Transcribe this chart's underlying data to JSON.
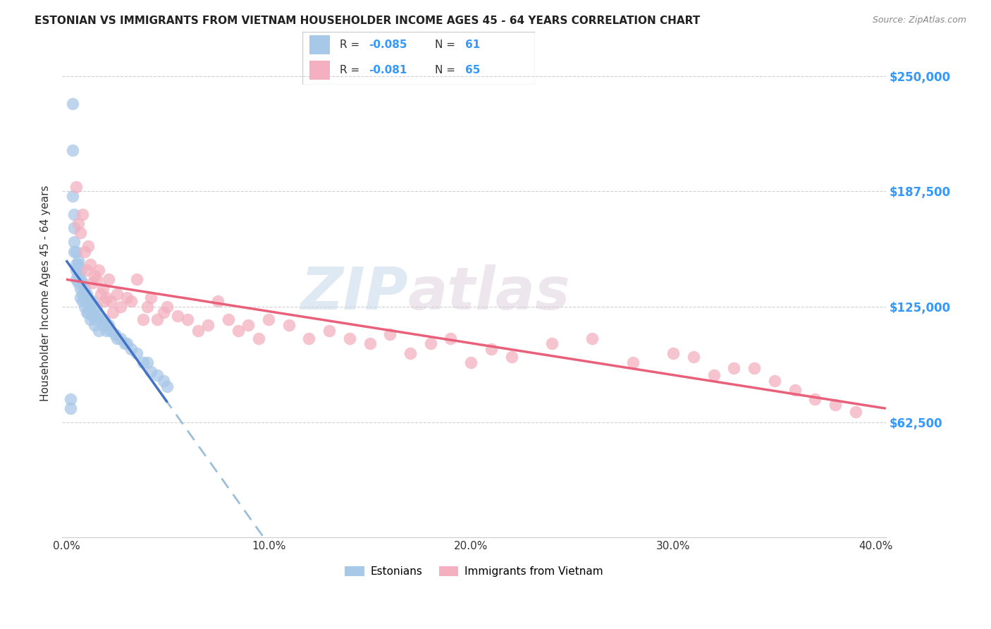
{
  "title": "ESTONIAN VS IMMIGRANTS FROM VIETNAM HOUSEHOLDER INCOME AGES 45 - 64 YEARS CORRELATION CHART",
  "source": "Source: ZipAtlas.com",
  "ylabel": "Householder Income Ages 45 - 64 years",
  "xlabel_ticks": [
    "0.0%",
    "10.0%",
    "20.0%",
    "30.0%",
    "40.0%"
  ],
  "xlabel_vals": [
    0.0,
    0.1,
    0.2,
    0.3,
    0.4
  ],
  "ylabel_ticks": [
    "$62,500",
    "$125,000",
    "$187,500",
    "$250,000"
  ],
  "ylabel_vals": [
    62500,
    125000,
    187500,
    250000
  ],
  "xmin": -0.002,
  "xmax": 0.405,
  "ymin": 0,
  "ymax": 265000,
  "color_estonian": "#a8c8e8",
  "color_vietnam": "#f4b0c0",
  "color_estonian_line": "#4472c4",
  "color_vietnam_line": "#e8607a",
  "color_estonian_dashed": "#90b8d8",
  "watermark_zip": "ZIP",
  "watermark_atlas": "atlas",
  "estonian_x": [
    0.002,
    0.002,
    0.003,
    0.003,
    0.003,
    0.004,
    0.004,
    0.004,
    0.004,
    0.005,
    0.005,
    0.005,
    0.005,
    0.006,
    0.006,
    0.006,
    0.006,
    0.007,
    0.007,
    0.007,
    0.007,
    0.008,
    0.008,
    0.008,
    0.009,
    0.009,
    0.009,
    0.01,
    0.01,
    0.01,
    0.011,
    0.011,
    0.012,
    0.012,
    0.013,
    0.013,
    0.014,
    0.014,
    0.015,
    0.015,
    0.016,
    0.016,
    0.017,
    0.018,
    0.019,
    0.02,
    0.021,
    0.022,
    0.024,
    0.025,
    0.027,
    0.029,
    0.03,
    0.032,
    0.035,
    0.038,
    0.04,
    0.042,
    0.045,
    0.048,
    0.05
  ],
  "estonian_y": [
    75000,
    70000,
    235000,
    210000,
    185000,
    175000,
    168000,
    160000,
    155000,
    155000,
    148000,
    145000,
    140000,
    150000,
    148000,
    142000,
    138000,
    145000,
    140000,
    135000,
    130000,
    138000,
    132000,
    128000,
    135000,
    130000,
    125000,
    132000,
    128000,
    122000,
    128000,
    122000,
    125000,
    118000,
    128000,
    120000,
    122000,
    115000,
    125000,
    118000,
    120000,
    112000,
    118000,
    115000,
    118000,
    112000,
    115000,
    112000,
    110000,
    108000,
    108000,
    105000,
    105000,
    102000,
    100000,
    95000,
    95000,
    90000,
    88000,
    85000,
    82000
  ],
  "vietnam_x": [
    0.005,
    0.006,
    0.007,
    0.008,
    0.009,
    0.01,
    0.011,
    0.012,
    0.013,
    0.014,
    0.015,
    0.016,
    0.017,
    0.018,
    0.019,
    0.02,
    0.021,
    0.022,
    0.023,
    0.025,
    0.027,
    0.03,
    0.032,
    0.035,
    0.038,
    0.04,
    0.042,
    0.045,
    0.048,
    0.05,
    0.055,
    0.06,
    0.065,
    0.07,
    0.075,
    0.08,
    0.085,
    0.09,
    0.095,
    0.1,
    0.11,
    0.12,
    0.13,
    0.14,
    0.15,
    0.16,
    0.17,
    0.18,
    0.19,
    0.2,
    0.21,
    0.22,
    0.24,
    0.26,
    0.28,
    0.3,
    0.31,
    0.32,
    0.33,
    0.34,
    0.35,
    0.36,
    0.37,
    0.38,
    0.39
  ],
  "vietnam_y": [
    190000,
    170000,
    165000,
    175000,
    155000,
    145000,
    158000,
    148000,
    138000,
    142000,
    140000,
    145000,
    132000,
    135000,
    128000,
    130000,
    140000,
    128000,
    122000,
    132000,
    125000,
    130000,
    128000,
    140000,
    118000,
    125000,
    130000,
    118000,
    122000,
    125000,
    120000,
    118000,
    112000,
    115000,
    128000,
    118000,
    112000,
    115000,
    108000,
    118000,
    115000,
    108000,
    112000,
    108000,
    105000,
    110000,
    100000,
    105000,
    108000,
    95000,
    102000,
    98000,
    105000,
    108000,
    95000,
    100000,
    98000,
    88000,
    92000,
    92000,
    85000,
    80000,
    75000,
    72000,
    68000
  ]
}
